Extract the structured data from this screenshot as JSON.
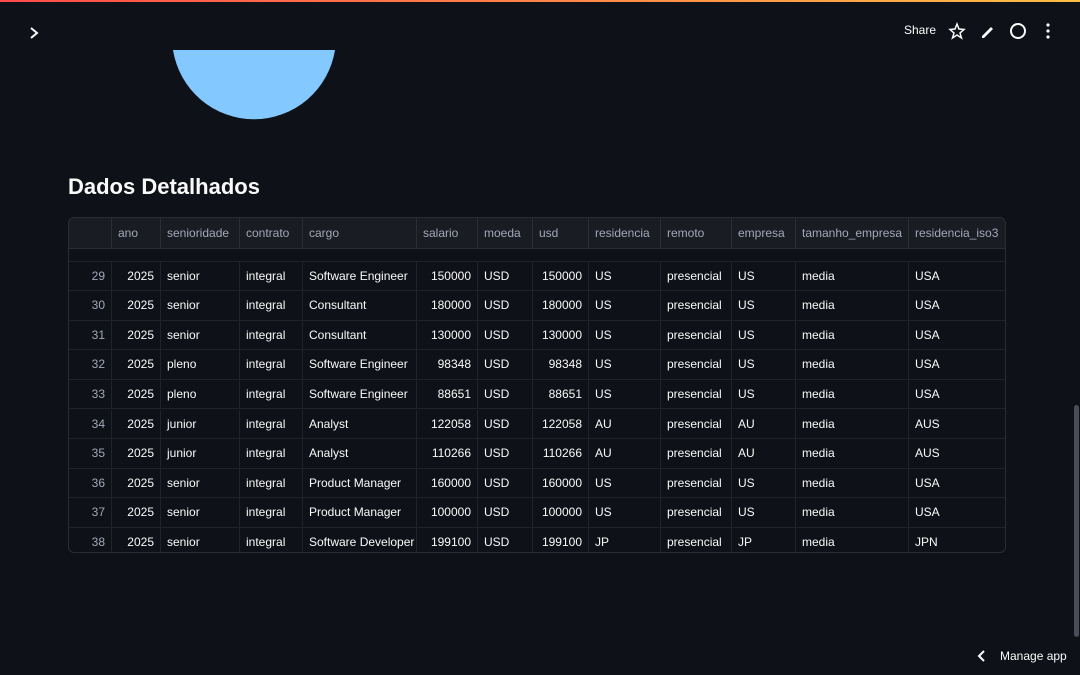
{
  "toolbar": {
    "share": "Share",
    "manage": "Manage app"
  },
  "section_title": "Dados Detalhados",
  "table": {
    "columns": [
      "ano",
      "senioridade",
      "contrato",
      "cargo",
      "salario",
      "moeda",
      "usd",
      "residencia",
      "remoto",
      "empresa",
      "tamanho_empresa",
      "residencia_iso3"
    ],
    "index": [
      29,
      30,
      31,
      32,
      33,
      34,
      35,
      36,
      37,
      38
    ],
    "rows": [
      [
        2025,
        "senior",
        "integral",
        "Software Engineer",
        150000,
        "USD",
        150000,
        "US",
        "presencial",
        "US",
        "media",
        "USA"
      ],
      [
        2025,
        "senior",
        "integral",
        "Consultant",
        180000,
        "USD",
        180000,
        "US",
        "presencial",
        "US",
        "media",
        "USA"
      ],
      [
        2025,
        "senior",
        "integral",
        "Consultant",
        130000,
        "USD",
        130000,
        "US",
        "presencial",
        "US",
        "media",
        "USA"
      ],
      [
        2025,
        "pleno",
        "integral",
        "Software Engineer",
        98348,
        "USD",
        98348,
        "US",
        "presencial",
        "US",
        "media",
        "USA"
      ],
      [
        2025,
        "pleno",
        "integral",
        "Software Engineer",
        88651,
        "USD",
        88651,
        "US",
        "presencial",
        "US",
        "media",
        "USA"
      ],
      [
        2025,
        "junior",
        "integral",
        "Analyst",
        122058,
        "USD",
        122058,
        "AU",
        "presencial",
        "AU",
        "media",
        "AUS"
      ],
      [
        2025,
        "junior",
        "integral",
        "Analyst",
        110266,
        "USD",
        110266,
        "AU",
        "presencial",
        "AU",
        "media",
        "AUS"
      ],
      [
        2025,
        "senior",
        "integral",
        "Product Manager",
        160000,
        "USD",
        160000,
        "US",
        "presencial",
        "US",
        "media",
        "USA"
      ],
      [
        2025,
        "senior",
        "integral",
        "Product Manager",
        100000,
        "USD",
        100000,
        "US",
        "presencial",
        "US",
        "media",
        "USA"
      ],
      [
        2025,
        "senior",
        "integral",
        "Software Developer",
        199100,
        "USD",
        199100,
        "JP",
        "presencial",
        "JP",
        "media",
        "JPN"
      ]
    ]
  }
}
